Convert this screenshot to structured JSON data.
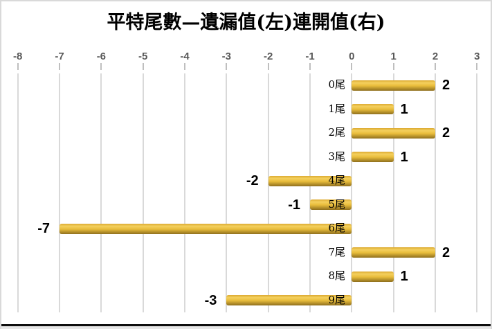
{
  "chart_data": {
    "type": "bar",
    "orientation": "horizontal",
    "title": "平特尾數—遺漏值(左)連開值(右)",
    "categories": [
      "0尾",
      "1尾",
      "2尾",
      "3尾",
      "4尾",
      "5尾",
      "6尾",
      "7尾",
      "8尾",
      "9尾"
    ],
    "values": [
      2,
      1,
      2,
      1,
      -2,
      -1,
      -7,
      2,
      1,
      -3
    ],
    "data_labels": [
      "2",
      "1",
      "2",
      "1",
      "-2",
      "-1",
      "-7",
      "2",
      "1",
      "-3"
    ],
    "x_axis": {
      "min": -8,
      "max": 3,
      "tick_step": 1,
      "tick_labels": [
        "-8",
        "-7",
        "-6",
        "-5",
        "-4",
        "-3",
        "-2",
        "-1",
        "0",
        "1",
        "2",
        "3"
      ],
      "position": "top"
    },
    "grid": true,
    "legend": false,
    "data_label_position": "outside-end",
    "category_label_position": "left-of-zero-axis",
    "colors": {
      "bar_gradient_top": "#dcaa31",
      "bar_gradient_light": "#f4d05e",
      "bar_gradient_mid": "#e9bd3c",
      "bar_gradient_bottom": "#8f6f1e",
      "gridline": "#d9d9d9",
      "axis_tick": "#bfbfbf",
      "axis_label": "#595959",
      "title": "#000000",
      "category_label": "#000000",
      "data_label": "#000000",
      "chart_border": "#d9d9d9",
      "bottom_rule": "#0d0d0d",
      "bottom_strip": "#e6e6e6",
      "background": "#ffffff"
    }
  }
}
